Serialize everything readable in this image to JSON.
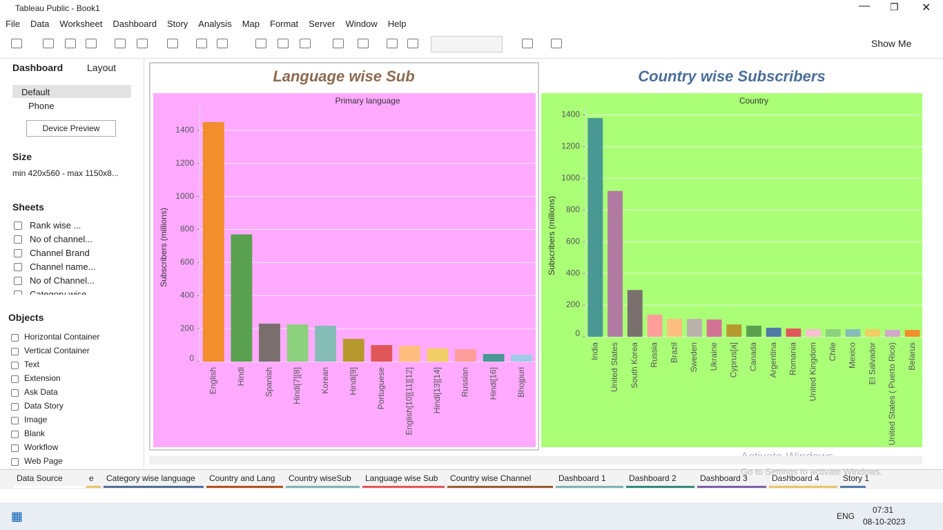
{
  "window": {
    "title": "Tableau Public - Book1"
  },
  "menu": [
    "File",
    "Data",
    "Worksheet",
    "Dashboard",
    "Story",
    "Analysis",
    "Map",
    "Format",
    "Server",
    "Window",
    "Help"
  ],
  "toolbar": {
    "show_me": "Show Me"
  },
  "side_panel": {
    "tabs": [
      "Dashboard",
      "Layout"
    ],
    "devices": [
      "Default",
      "Phone"
    ],
    "device_preview": "Device Preview",
    "size_heading": "Size",
    "size_value": "min 420x560 - max 1150x8...",
    "sheets_heading": "Sheets",
    "sheets": [
      "Rank wise ...",
      "No of channel...",
      "Channel Brand",
      "Channel name...",
      "No of Channel...",
      "Category wise..."
    ],
    "objects_heading": "Objects",
    "objects": [
      "Horizontal Container",
      "Vertical Container",
      "Text",
      "Extension",
      "Ask Data",
      "Data Story",
      "Image",
      "Blank",
      "Workflow",
      "Web Page"
    ]
  },
  "chart_data": [
    {
      "type": "bar",
      "title": "Language wise Sub",
      "header": "Primary language",
      "y_label": "Subscribers (millions)",
      "categories": [
        "English",
        "Hindi",
        "Spanish",
        "Hindi[7][8]",
        "Korean",
        "Hindi[9]",
        "Portuguese",
        "English[10][11][12]",
        "Hindi[13][14]",
        "Russian",
        "Hindi[16]",
        "Bhojpuri"
      ],
      "values": [
        1450,
        770,
        230,
        225,
        217,
        138,
        100,
        96,
        80,
        75,
        46,
        42
      ],
      "colors": [
        "#f28e2b",
        "#59a14f",
        "#79706e",
        "#8cd17d",
        "#86bcb6",
        "#b6992d",
        "#e15759",
        "#ffbe7d",
        "#f1ce63",
        "#ff9d9a",
        "#499894",
        "#a0cbe8"
      ],
      "background": "#ffaaff",
      "ylim": [
        0,
        1550
      ],
      "yticks": [
        0,
        200,
        400,
        600,
        800,
        1000,
        1200,
        1400
      ],
      "grid": true
    },
    {
      "type": "bar",
      "title": "Country wise Subscribers",
      "header": "Country",
      "y_label": "Subscribers (millions)",
      "categories": [
        "India",
        "United States",
        "South Korea",
        "Russia",
        "Brazil",
        "Sweden",
        "Ukraine",
        "Cyprus[a]",
        "Canada",
        "Argentina",
        "Romania",
        "United Kingdom",
        "Chile",
        "Mexico",
        "El Salvador",
        "United States ( Puerto Rico)",
        "Belarus"
      ],
      "values": [
        1380,
        920,
        295,
        139,
        113,
        113,
        109,
        78,
        70,
        57,
        52,
        48,
        48,
        48,
        48,
        43,
        43
      ],
      "colors": [
        "#499894",
        "#b07aa1",
        "#79706e",
        "#ff9d9a",
        "#ffbe7d",
        "#bab0ac",
        "#d37295",
        "#b6992d",
        "#59a14f",
        "#4e79a7",
        "#e15759",
        "#fabfd2",
        "#8cd17d",
        "#86bcb6",
        "#f1ce63",
        "#d4a6c8",
        "#f28e2b"
      ],
      "background": "#aaff77",
      "ylim": [
        0,
        1450
      ],
      "yticks": [
        0,
        200,
        400,
        600,
        800,
        1000,
        1200,
        1400
      ],
      "grid": true
    }
  ],
  "tabs": [
    "Data Source",
    "e",
    "Category wise language",
    "Country and Lang",
    "Country wiseSub",
    "Language wise Sub",
    "Country wise Channel",
    "Dashboard 1",
    "Dashboard 2",
    "Dashboard 3",
    "Dashboard 4",
    "Story 1"
  ],
  "watermark": [
    "Activate Windows",
    "Go to Settings to activate Windows."
  ],
  "taskbar": {
    "language": "ENG",
    "time": "07:31",
    "date": "08-10-2023"
  }
}
